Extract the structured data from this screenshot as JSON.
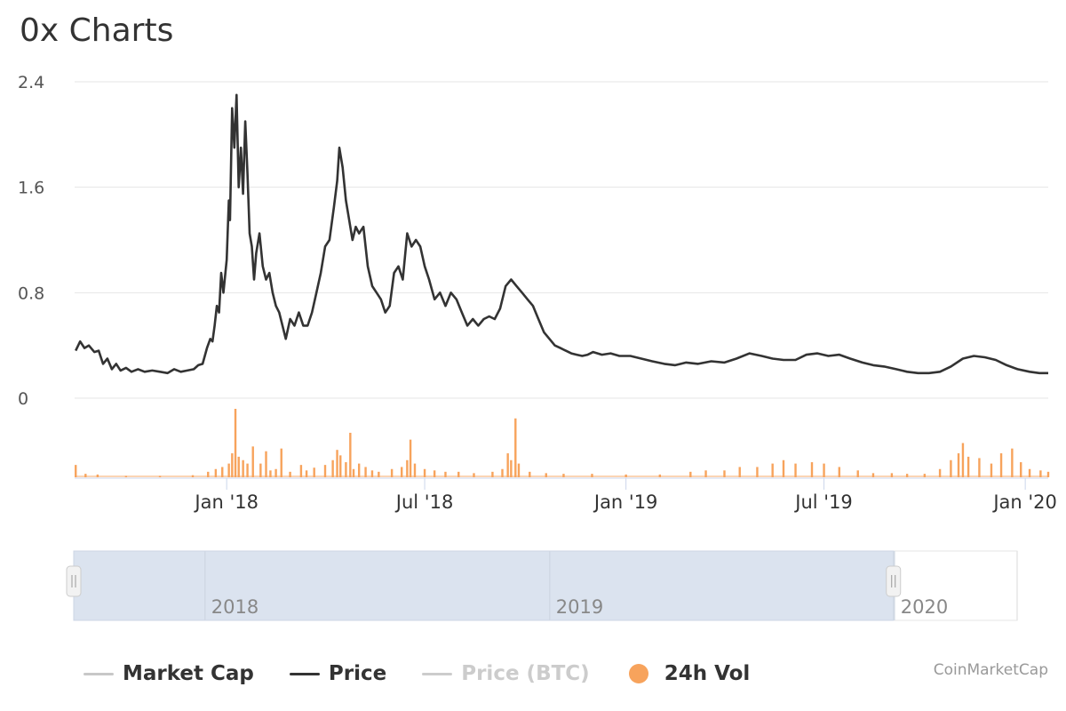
{
  "title": "0x Charts",
  "credit": "CoinMarketCap",
  "colors": {
    "price": "#333333",
    "volume": "#f7a35c",
    "market_cap": "#cccccc",
    "price_btc": "#cccccc",
    "grid": "#e6e6e6",
    "navigator_mask": "#dbe3ef"
  },
  "legend": [
    {
      "label": "Market Cap",
      "symbol": "line",
      "color": "#c8c8c8",
      "text_color": "#333333",
      "enabled": true
    },
    {
      "label": "Price",
      "symbol": "line",
      "color": "#333333",
      "text_color": "#333333",
      "enabled": true
    },
    {
      "label": "Price (BTC)",
      "symbol": "line",
      "color": "#cccccc",
      "text_color": "#cccccc",
      "enabled": false
    },
    {
      "label": "24h Vol",
      "symbol": "dot",
      "color": "#f7a35c",
      "text_color": "#333333",
      "enabled": true
    }
  ],
  "chart_data": {
    "type": "line",
    "title": "0x Charts",
    "legend_placement": "bottom",
    "grid": true,
    "ylim": [
      0,
      2.4
    ],
    "y_ticks": [
      "0",
      "0.8",
      "1.6",
      "2.4"
    ],
    "y_tick_values": [
      0,
      0.8,
      1.6,
      2.4
    ],
    "xlim": [
      "2017-08-15",
      "2020-01-22"
    ],
    "x_ticks": [
      {
        "label": "Jan '18",
        "date": "2018-01-01"
      },
      {
        "label": "Jul '18",
        "date": "2018-07-01"
      },
      {
        "label": "Jan '19",
        "date": "2019-01-01"
      },
      {
        "label": "Jul '19",
        "date": "2019-07-01"
      },
      {
        "label": "Jan '20",
        "date": "2020-01-01"
      }
    ],
    "navigator": {
      "range_start": "2017-08-15",
      "range_end": "2020-01-22",
      "selected_start": "2017-08-15",
      "selected_end": "2019-12-31",
      "view_end": "2020-05-10",
      "ticks": [
        {
          "label": "2018",
          "date": "2018-01-01"
        },
        {
          "label": "2019",
          "date": "2019-01-01"
        },
        {
          "label": "2020",
          "date": "2020-01-01"
        }
      ]
    },
    "series": [
      {
        "name": "Price",
        "kind": "line",
        "points": [
          [
            "2017-08-16",
            0.36
          ],
          [
            "2017-08-20",
            0.43
          ],
          [
            "2017-08-24",
            0.38
          ],
          [
            "2017-08-28",
            0.4
          ],
          [
            "2017-09-02",
            0.35
          ],
          [
            "2017-09-06",
            0.36
          ],
          [
            "2017-09-10",
            0.26
          ],
          [
            "2017-09-14",
            0.3
          ],
          [
            "2017-09-18",
            0.22
          ],
          [
            "2017-09-22",
            0.26
          ],
          [
            "2017-09-26",
            0.21
          ],
          [
            "2017-10-01",
            0.23
          ],
          [
            "2017-10-06",
            0.2
          ],
          [
            "2017-10-12",
            0.22
          ],
          [
            "2017-10-18",
            0.2
          ],
          [
            "2017-10-25",
            0.21
          ],
          [
            "2017-11-01",
            0.2
          ],
          [
            "2017-11-08",
            0.19
          ],
          [
            "2017-11-14",
            0.22
          ],
          [
            "2017-11-20",
            0.2
          ],
          [
            "2017-11-26",
            0.21
          ],
          [
            "2017-12-02",
            0.22
          ],
          [
            "2017-12-06",
            0.25
          ],
          [
            "2017-12-10",
            0.26
          ],
          [
            "2017-12-14",
            0.38
          ],
          [
            "2017-12-17",
            0.45
          ],
          [
            "2017-12-19",
            0.43
          ],
          [
            "2017-12-21",
            0.55
          ],
          [
            "2017-12-23",
            0.7
          ],
          [
            "2017-12-25",
            0.65
          ],
          [
            "2017-12-27",
            0.95
          ],
          [
            "2017-12-29",
            0.8
          ],
          [
            "2018-01-01",
            1.05
          ],
          [
            "2018-01-03",
            1.5
          ],
          [
            "2018-01-04",
            1.35
          ],
          [
            "2018-01-06",
            2.2
          ],
          [
            "2018-01-08",
            1.9
          ],
          [
            "2018-01-10",
            2.3
          ],
          [
            "2018-01-12",
            1.6
          ],
          [
            "2018-01-14",
            1.9
          ],
          [
            "2018-01-16",
            1.55
          ],
          [
            "2018-01-18",
            2.1
          ],
          [
            "2018-01-20",
            1.7
          ],
          [
            "2018-01-22",
            1.25
          ],
          [
            "2018-01-24",
            1.15
          ],
          [
            "2018-01-26",
            0.9
          ],
          [
            "2018-01-28",
            1.1
          ],
          [
            "2018-01-31",
            1.25
          ],
          [
            "2018-02-03",
            1.0
          ],
          [
            "2018-02-06",
            0.9
          ],
          [
            "2018-02-09",
            0.95
          ],
          [
            "2018-02-12",
            0.8
          ],
          [
            "2018-02-15",
            0.7
          ],
          [
            "2018-02-18",
            0.65
          ],
          [
            "2018-02-21",
            0.55
          ],
          [
            "2018-02-24",
            0.45
          ],
          [
            "2018-02-28",
            0.6
          ],
          [
            "2018-03-04",
            0.55
          ],
          [
            "2018-03-08",
            0.65
          ],
          [
            "2018-03-12",
            0.55
          ],
          [
            "2018-03-16",
            0.55
          ],
          [
            "2018-03-20",
            0.65
          ],
          [
            "2018-03-24",
            0.8
          ],
          [
            "2018-03-28",
            0.95
          ],
          [
            "2018-04-01",
            1.15
          ],
          [
            "2018-04-05",
            1.2
          ],
          [
            "2018-04-09",
            1.45
          ],
          [
            "2018-04-12",
            1.65
          ],
          [
            "2018-04-14",
            1.9
          ],
          [
            "2018-04-17",
            1.75
          ],
          [
            "2018-04-20",
            1.5
          ],
          [
            "2018-04-23",
            1.35
          ],
          [
            "2018-04-26",
            1.2
          ],
          [
            "2018-04-29",
            1.3
          ],
          [
            "2018-05-02",
            1.25
          ],
          [
            "2018-05-06",
            1.3
          ],
          [
            "2018-05-10",
            1.0
          ],
          [
            "2018-05-14",
            0.85
          ],
          [
            "2018-05-18",
            0.8
          ],
          [
            "2018-05-22",
            0.75
          ],
          [
            "2018-05-26",
            0.65
          ],
          [
            "2018-05-30",
            0.7
          ],
          [
            "2018-06-03",
            0.95
          ],
          [
            "2018-06-07",
            1.0
          ],
          [
            "2018-06-11",
            0.9
          ],
          [
            "2018-06-15",
            1.25
          ],
          [
            "2018-06-19",
            1.15
          ],
          [
            "2018-06-23",
            1.2
          ],
          [
            "2018-06-27",
            1.15
          ],
          [
            "2018-07-01",
            1.0
          ],
          [
            "2018-07-05",
            0.9
          ],
          [
            "2018-07-10",
            0.75
          ],
          [
            "2018-07-15",
            0.8
          ],
          [
            "2018-07-20",
            0.7
          ],
          [
            "2018-07-25",
            0.8
          ],
          [
            "2018-07-30",
            0.75
          ],
          [
            "2018-08-04",
            0.65
          ],
          [
            "2018-08-09",
            0.55
          ],
          [
            "2018-08-14",
            0.6
          ],
          [
            "2018-08-19",
            0.55
          ],
          [
            "2018-08-24",
            0.6
          ],
          [
            "2018-08-29",
            0.62
          ],
          [
            "2018-09-03",
            0.6
          ],
          [
            "2018-09-08",
            0.68
          ],
          [
            "2018-09-13",
            0.85
          ],
          [
            "2018-09-18",
            0.9
          ],
          [
            "2018-09-23",
            0.85
          ],
          [
            "2018-09-28",
            0.8
          ],
          [
            "2018-10-03",
            0.75
          ],
          [
            "2018-10-08",
            0.7
          ],
          [
            "2018-10-13",
            0.6
          ],
          [
            "2018-10-18",
            0.5
          ],
          [
            "2018-10-23",
            0.45
          ],
          [
            "2018-10-28",
            0.4
          ],
          [
            "2018-11-02",
            0.38
          ],
          [
            "2018-11-07",
            0.36
          ],
          [
            "2018-11-12",
            0.34
          ],
          [
            "2018-11-17",
            0.33
          ],
          [
            "2018-11-22",
            0.32
          ],
          [
            "2018-11-27",
            0.33
          ],
          [
            "2018-12-02",
            0.35
          ],
          [
            "2018-12-10",
            0.33
          ],
          [
            "2018-12-18",
            0.34
          ],
          [
            "2018-12-26",
            0.32
          ],
          [
            "2019-01-05",
            0.32
          ],
          [
            "2019-01-15",
            0.3
          ],
          [
            "2019-01-25",
            0.28
          ],
          [
            "2019-02-05",
            0.26
          ],
          [
            "2019-02-15",
            0.25
          ],
          [
            "2019-02-25",
            0.27
          ],
          [
            "2019-03-08",
            0.26
          ],
          [
            "2019-03-20",
            0.28
          ],
          [
            "2019-04-01",
            0.27
          ],
          [
            "2019-04-12",
            0.3
          ],
          [
            "2019-04-24",
            0.34
          ],
          [
            "2019-05-05",
            0.32
          ],
          [
            "2019-05-15",
            0.3
          ],
          [
            "2019-05-25",
            0.29
          ],
          [
            "2019-06-05",
            0.29
          ],
          [
            "2019-06-15",
            0.33
          ],
          [
            "2019-06-25",
            0.34
          ],
          [
            "2019-07-05",
            0.32
          ],
          [
            "2019-07-15",
            0.33
          ],
          [
            "2019-07-25",
            0.3
          ],
          [
            "2019-08-05",
            0.27
          ],
          [
            "2019-08-15",
            0.25
          ],
          [
            "2019-08-25",
            0.24
          ],
          [
            "2019-09-05",
            0.22
          ],
          [
            "2019-09-15",
            0.2
          ],
          [
            "2019-09-25",
            0.19
          ],
          [
            "2019-10-05",
            0.19
          ],
          [
            "2019-10-15",
            0.2
          ],
          [
            "2019-10-25",
            0.24
          ],
          [
            "2019-11-05",
            0.3
          ],
          [
            "2019-11-15",
            0.32
          ],
          [
            "2019-11-25",
            0.31
          ],
          [
            "2019-12-05",
            0.29
          ],
          [
            "2019-12-15",
            0.25
          ],
          [
            "2019-12-25",
            0.22
          ],
          [
            "2020-01-05",
            0.2
          ],
          [
            "2020-01-14",
            0.19
          ],
          [
            "2020-01-22",
            0.19
          ]
        ]
      },
      {
        "name": "24h Vol",
        "kind": "column",
        "relative_scale": true,
        "points": [
          [
            "2017-08-16",
            0.18
          ],
          [
            "2017-08-25",
            0.05
          ],
          [
            "2017-09-05",
            0.04
          ],
          [
            "2017-10-01",
            0.02
          ],
          [
            "2017-11-01",
            0.02
          ],
          [
            "2017-12-01",
            0.03
          ],
          [
            "2017-12-15",
            0.08
          ],
          [
            "2017-12-22",
            0.12
          ],
          [
            "2017-12-28",
            0.15
          ],
          [
            "2018-01-03",
            0.2
          ],
          [
            "2018-01-06",
            0.35
          ],
          [
            "2018-01-09",
            1.0
          ],
          [
            "2018-01-12",
            0.3
          ],
          [
            "2018-01-16",
            0.25
          ],
          [
            "2018-01-20",
            0.2
          ],
          [
            "2018-01-25",
            0.45
          ],
          [
            "2018-02-01",
            0.2
          ],
          [
            "2018-02-06",
            0.38
          ],
          [
            "2018-02-10",
            0.1
          ],
          [
            "2018-02-15",
            0.12
          ],
          [
            "2018-02-20",
            0.42
          ],
          [
            "2018-02-28",
            0.08
          ],
          [
            "2018-03-10",
            0.18
          ],
          [
            "2018-03-15",
            0.1
          ],
          [
            "2018-03-22",
            0.14
          ],
          [
            "2018-04-01",
            0.18
          ],
          [
            "2018-04-08",
            0.25
          ],
          [
            "2018-04-12",
            0.4
          ],
          [
            "2018-04-15",
            0.32
          ],
          [
            "2018-04-20",
            0.22
          ],
          [
            "2018-04-24",
            0.65
          ],
          [
            "2018-04-27",
            0.12
          ],
          [
            "2018-05-02",
            0.2
          ],
          [
            "2018-05-08",
            0.15
          ],
          [
            "2018-05-14",
            0.1
          ],
          [
            "2018-05-20",
            0.08
          ],
          [
            "2018-06-01",
            0.12
          ],
          [
            "2018-06-10",
            0.15
          ],
          [
            "2018-06-15",
            0.25
          ],
          [
            "2018-06-18",
            0.55
          ],
          [
            "2018-06-22",
            0.2
          ],
          [
            "2018-07-01",
            0.12
          ],
          [
            "2018-07-10",
            0.1
          ],
          [
            "2018-07-20",
            0.08
          ],
          [
            "2018-08-01",
            0.08
          ],
          [
            "2018-08-15",
            0.06
          ],
          [
            "2018-09-01",
            0.08
          ],
          [
            "2018-09-10",
            0.12
          ],
          [
            "2018-09-15",
            0.35
          ],
          [
            "2018-09-18",
            0.25
          ],
          [
            "2018-09-22",
            0.86
          ],
          [
            "2018-09-25",
            0.2
          ],
          [
            "2018-10-05",
            0.08
          ],
          [
            "2018-10-20",
            0.06
          ],
          [
            "2018-11-05",
            0.05
          ],
          [
            "2018-12-01",
            0.05
          ],
          [
            "2019-01-01",
            0.04
          ],
          [
            "2019-02-01",
            0.04
          ],
          [
            "2019-03-01",
            0.08
          ],
          [
            "2019-03-15",
            0.1
          ],
          [
            "2019-04-01",
            0.1
          ],
          [
            "2019-04-15",
            0.15
          ],
          [
            "2019-05-01",
            0.15
          ],
          [
            "2019-05-15",
            0.2
          ],
          [
            "2019-05-25",
            0.25
          ],
          [
            "2019-06-05",
            0.2
          ],
          [
            "2019-06-20",
            0.22
          ],
          [
            "2019-07-01",
            0.2
          ],
          [
            "2019-07-15",
            0.15
          ],
          [
            "2019-08-01",
            0.1
          ],
          [
            "2019-08-15",
            0.06
          ],
          [
            "2019-09-01",
            0.06
          ],
          [
            "2019-09-15",
            0.05
          ],
          [
            "2019-10-01",
            0.05
          ],
          [
            "2019-10-15",
            0.12
          ],
          [
            "2019-10-25",
            0.25
          ],
          [
            "2019-11-01",
            0.35
          ],
          [
            "2019-11-05",
            0.5
          ],
          [
            "2019-11-10",
            0.3
          ],
          [
            "2019-11-20",
            0.28
          ],
          [
            "2019-12-01",
            0.2
          ],
          [
            "2019-12-10",
            0.35
          ],
          [
            "2019-12-20",
            0.42
          ],
          [
            "2019-12-28",
            0.22
          ],
          [
            "2020-01-05",
            0.12
          ],
          [
            "2020-01-15",
            0.1
          ],
          [
            "2020-01-22",
            0.08
          ]
        ]
      }
    ]
  }
}
